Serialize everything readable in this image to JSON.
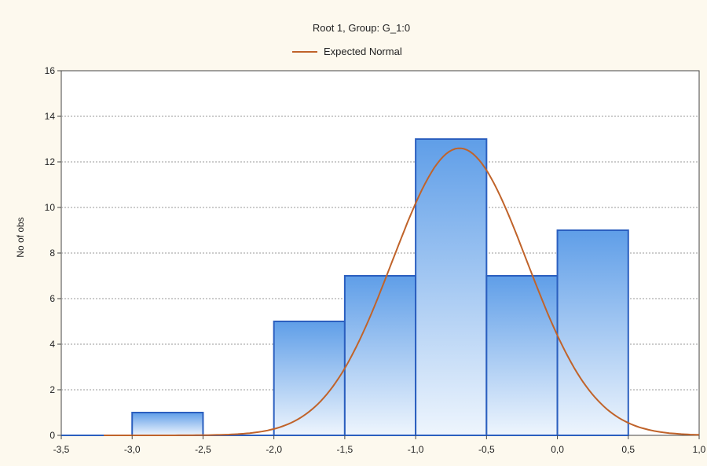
{
  "chart_data": {
    "type": "bar",
    "title": "Root  1, Group: G_1:0",
    "xlabel": "",
    "ylabel": "No of obs",
    "legend": [
      {
        "name": "Expected Normal",
        "color": "#c0632a",
        "style": "line"
      }
    ],
    "legend_placement": "top-center",
    "grid": true,
    "xlim": [
      -3.5,
      1.0
    ],
    "ylim": [
      0,
      16
    ],
    "x_ticks": [
      "-3,5",
      "-3,0",
      "-2,5",
      "-2,0",
      "-1,5",
      "-1,0",
      "-0,5",
      "0,0",
      "0,5",
      "1,0"
    ],
    "y_ticks": [
      "0",
      "2",
      "4",
      "6",
      "8",
      "10",
      "12",
      "14",
      "16"
    ],
    "bins": [
      {
        "from": -3.5,
        "to": -3.0,
        "count": 0
      },
      {
        "from": -3.0,
        "to": -2.5,
        "count": 1
      },
      {
        "from": -2.5,
        "to": -2.0,
        "count": 0
      },
      {
        "from": -2.0,
        "to": -1.5,
        "count": 5
      },
      {
        "from": -1.5,
        "to": -1.0,
        "count": 7
      },
      {
        "from": -1.0,
        "to": -0.5,
        "count": 13
      },
      {
        "from": -0.5,
        "to": 0.0,
        "count": 7
      },
      {
        "from": 0.0,
        "to": 0.5,
        "count": 9
      }
    ],
    "series": [
      {
        "name": "Expected Normal",
        "type": "line",
        "mean": -0.69,
        "peak": 12.6,
        "sd": 0.475
      }
    ],
    "colors": {
      "bar_fill_top": "#5f9ee8",
      "bar_fill_bottom": "#eef5fd",
      "bar_stroke": "#2b5fbf",
      "curve": "#c0632a",
      "plot_bg": "#ffffff",
      "page_bg": "#fdf9ee"
    }
  }
}
